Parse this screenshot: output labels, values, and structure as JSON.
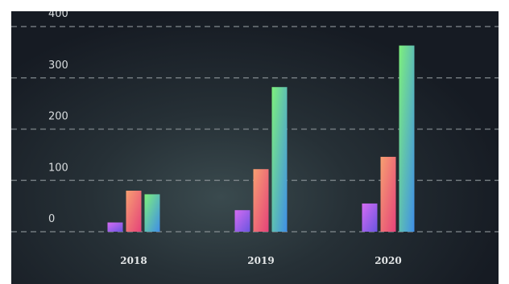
{
  "chart_data": {
    "type": "bar",
    "categories": [
      "2018",
      "2019",
      "2020"
    ],
    "series": [
      {
        "values": [
          18,
          42,
          55
        ],
        "gradient": [
          "#d56cf2",
          "#6a55e0"
        ]
      },
      {
        "values": [
          80,
          122,
          146
        ],
        "gradient": [
          "#f7a071",
          "#e5427a"
        ]
      },
      {
        "values": [
          73,
          282,
          363
        ],
        "gradient": [
          "#7ef07c",
          "#3f8ee8"
        ]
      }
    ],
    "yticks": [
      0,
      100,
      200,
      300,
      400
    ],
    "ylim": [
      0,
      420
    ],
    "grid": true,
    "title": "",
    "xlabel": "",
    "ylabel": ""
  }
}
